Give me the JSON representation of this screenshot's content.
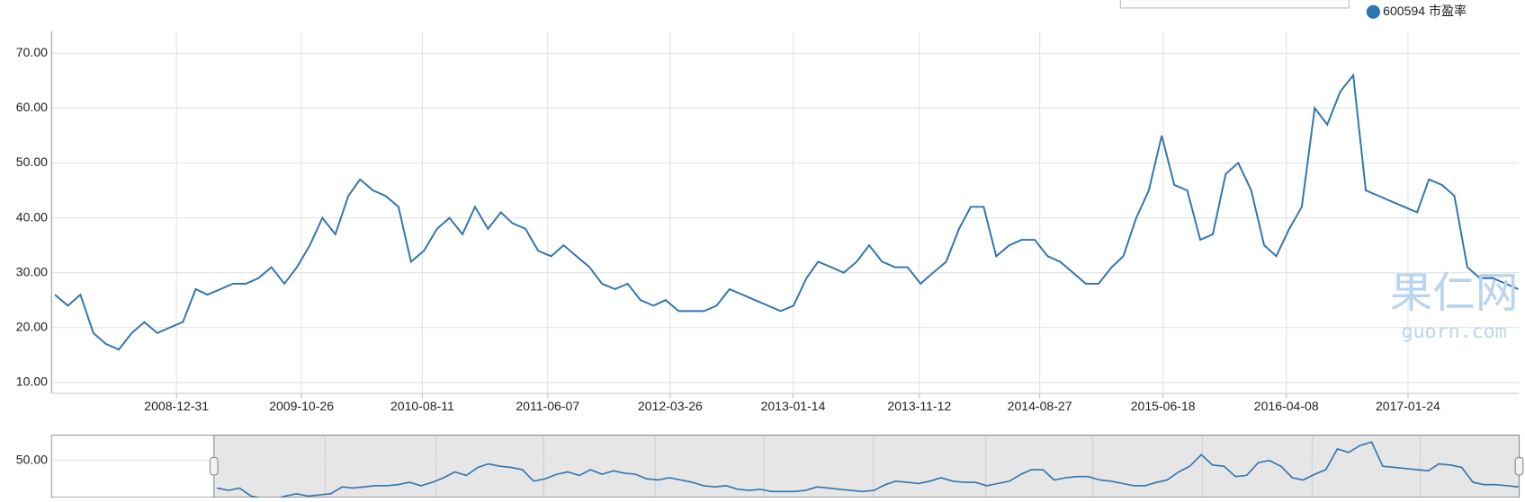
{
  "chart_data": {
    "type": "line",
    "x": [
      "2008-03-15",
      "2008-04-15",
      "2008-05-15",
      "2008-06-15",
      "2008-07-15",
      "2008-08-15",
      "2008-09-15",
      "2008-10-15",
      "2008-11-15",
      "2008-12-15",
      "2009-01-15",
      "2009-02-15",
      "2009-03-15",
      "2009-04-15",
      "2009-05-15",
      "2009-06-15",
      "2009-07-15",
      "2009-08-15",
      "2009-09-15",
      "2009-10-15",
      "2009-11-15",
      "2009-12-15",
      "2010-01-15",
      "2010-02-15",
      "2010-03-15",
      "2010-04-15",
      "2010-05-15",
      "2010-06-15",
      "2010-07-15",
      "2010-08-15",
      "2010-09-15",
      "2010-10-15",
      "2010-11-15",
      "2010-12-15",
      "2011-01-15",
      "2011-02-15",
      "2011-03-15",
      "2011-04-15",
      "2011-05-15",
      "2011-06-15",
      "2011-07-15",
      "2011-08-15",
      "2011-09-15",
      "2011-10-15",
      "2011-11-15",
      "2011-12-15",
      "2012-01-15",
      "2012-02-15",
      "2012-03-15",
      "2012-04-15",
      "2012-05-15",
      "2012-06-15",
      "2012-07-15",
      "2012-08-15",
      "2012-09-15",
      "2012-10-15",
      "2012-11-15",
      "2012-12-15",
      "2013-01-15",
      "2013-02-15",
      "2013-03-15",
      "2013-04-15",
      "2013-05-15",
      "2013-06-15",
      "2013-07-15",
      "2013-08-15",
      "2013-09-15",
      "2013-10-15",
      "2013-11-15",
      "2013-12-15",
      "2014-01-15",
      "2014-02-15",
      "2014-03-15",
      "2014-04-15",
      "2014-05-15",
      "2014-06-15",
      "2014-07-15",
      "2014-08-15",
      "2014-09-15",
      "2014-10-15",
      "2014-11-15",
      "2014-12-15",
      "2015-01-15",
      "2015-02-15",
      "2015-03-15",
      "2015-04-15",
      "2015-05-15",
      "2015-06-15",
      "2015-07-15",
      "2015-08-15",
      "2015-09-15",
      "2015-10-15",
      "2015-11-15",
      "2015-12-15",
      "2016-01-15",
      "2016-02-15",
      "2016-03-15",
      "2016-04-15",
      "2016-05-15",
      "2016-06-15",
      "2016-07-15",
      "2016-08-15",
      "2016-09-15",
      "2016-10-15",
      "2016-11-15",
      "2016-12-15",
      "2017-01-15",
      "2017-02-15",
      "2017-03-15",
      "2017-04-15",
      "2017-05-15",
      "2017-06-15",
      "2017-07-15",
      "2017-08-15",
      "2017-09-15",
      "2017-10-15"
    ],
    "series": [
      {
        "name": "600594 市盈率",
        "color": "#2f74b0",
        "values": [
          26,
          24,
          26,
          19,
          17,
          16,
          19,
          21,
          19,
          20,
          21,
          27,
          26,
          27,
          28,
          28,
          29,
          31,
          28,
          31,
          35,
          40,
          37,
          44,
          47,
          45,
          44,
          42,
          32,
          34,
          38,
          40,
          37,
          42,
          38,
          41,
          39,
          38,
          34,
          33,
          35,
          33,
          31,
          28,
          27,
          28,
          25,
          24,
          25,
          23,
          23,
          23,
          24,
          27,
          26,
          25,
          24,
          23,
          24,
          29,
          32,
          31,
          30,
          32,
          35,
          32,
          31,
          31,
          28,
          30,
          32,
          38,
          42,
          42,
          33,
          35,
          36,
          36,
          33,
          32,
          30,
          28,
          28,
          31,
          33,
          40,
          45,
          55,
          46,
          45,
          36,
          37,
          48,
          50,
          45,
          35,
          33,
          38,
          42,
          60,
          57,
          63,
          66,
          45,
          44,
          43,
          42,
          41,
          47,
          46,
          44,
          31,
          29,
          29,
          28,
          27
        ]
      }
    ],
    "xlim": [
      "2008-03-07",
      "2017-10-17"
    ],
    "xticks": [
      "2008-12-31",
      "2009-10-26",
      "2010-08-11",
      "2011-06-07",
      "2012-03-26",
      "2013-01-14",
      "2013-11-12",
      "2014-08-27",
      "2015-06-18",
      "2016-04-08",
      "2017-01-24"
    ],
    "ylim": [
      8,
      74
    ],
    "yticks": [
      {
        "value": 10,
        "label": "10.00"
      },
      {
        "value": 20,
        "label": "20.00"
      },
      {
        "value": 30,
        "label": "30.00"
      },
      {
        "value": 40,
        "label": "40.00"
      },
      {
        "value": 50,
        "label": "50.00"
      },
      {
        "value": 60,
        "label": "60.00"
      },
      {
        "value": 70,
        "label": "70.00"
      }
    ],
    "grid": true,
    "legend": "top-right",
    "navigator": {
      "ylim": [
        18,
        72
      ],
      "yticks": [
        {
          "value": 50,
          "label": "50.00"
        }
      ]
    },
    "watermark": {
      "title": "果仁网",
      "url": "guorn.com"
    }
  }
}
